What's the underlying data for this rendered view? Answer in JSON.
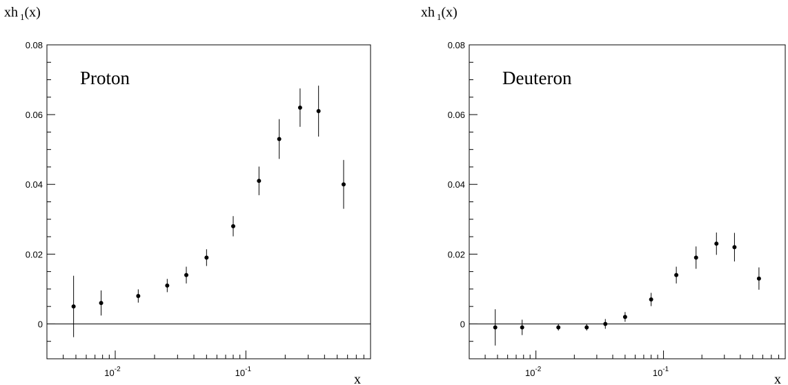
{
  "chart_data": [
    {
      "type": "scatter",
      "title": "Proton",
      "xlabel": "x",
      "ylabel": "xh",
      "ylabel_sub": "1",
      "ylabel_tail": "(x)",
      "x_scale": "log",
      "xlim": [
        0.003,
        0.9
      ],
      "ylim": [
        -0.01,
        0.08
      ],
      "yticks": [
        0,
        0.02,
        0.04,
        0.06,
        0.08
      ],
      "ytick_labels": [
        "0",
        "0.02",
        "0.04",
        "0.06",
        "0.08"
      ],
      "xticks_major": [
        0.01,
        0.1
      ],
      "xtick_labels": [
        {
          "base": "10",
          "exp": "-2"
        },
        {
          "base": "10",
          "exp": "-1"
        }
      ],
      "zero_line": true,
      "grid": false,
      "points": [
        {
          "x": 0.0048,
          "y": 0.005,
          "err": 0.0088
        },
        {
          "x": 0.0078,
          "y": 0.006,
          "err": 0.0036
        },
        {
          "x": 0.015,
          "y": 0.008,
          "err": 0.0019
        },
        {
          "x": 0.025,
          "y": 0.011,
          "err": 0.0019
        },
        {
          "x": 0.035,
          "y": 0.014,
          "err": 0.0024
        },
        {
          "x": 0.05,
          "y": 0.019,
          "err": 0.0024
        },
        {
          "x": 0.08,
          "y": 0.028,
          "err": 0.0029
        },
        {
          "x": 0.126,
          "y": 0.041,
          "err": 0.0041
        },
        {
          "x": 0.18,
          "y": 0.053,
          "err": 0.0057
        },
        {
          "x": 0.26,
          "y": 0.062,
          "err": 0.0055
        },
        {
          "x": 0.36,
          "y": 0.061,
          "err": 0.0073
        },
        {
          "x": 0.56,
          "y": 0.04,
          "err": 0.007
        }
      ]
    },
    {
      "type": "scatter",
      "title": "Deuteron",
      "xlabel": "x",
      "ylabel": "xh",
      "ylabel_sub": "1",
      "ylabel_tail": "(x)",
      "x_scale": "log",
      "xlim": [
        0.003,
        0.9
      ],
      "ylim": [
        -0.01,
        0.08
      ],
      "yticks": [
        0,
        0.02,
        0.04,
        0.06,
        0.08
      ],
      "ytick_labels": [
        "0",
        "0.02",
        "0.04",
        "0.06",
        "0.08"
      ],
      "xticks_major": [
        0.01,
        0.1
      ],
      "xtick_labels": [
        {
          "base": "10",
          "exp": "-2"
        },
        {
          "base": "10",
          "exp": "-1"
        }
      ],
      "zero_line": true,
      "grid": false,
      "points": [
        {
          "x": 0.0048,
          "y": -0.001,
          "err": 0.0052
        },
        {
          "x": 0.0078,
          "y": -0.001,
          "err": 0.0022
        },
        {
          "x": 0.015,
          "y": -0.001,
          "err": 0.0009
        },
        {
          "x": 0.025,
          "y": -0.001,
          "err": 0.0009
        },
        {
          "x": 0.035,
          "y": 0.0,
          "err": 0.0014
        },
        {
          "x": 0.05,
          "y": 0.002,
          "err": 0.0014
        },
        {
          "x": 0.08,
          "y": 0.007,
          "err": 0.0019
        },
        {
          "x": 0.126,
          "y": 0.014,
          "err": 0.0024
        },
        {
          "x": 0.18,
          "y": 0.019,
          "err": 0.0032
        },
        {
          "x": 0.26,
          "y": 0.023,
          "err": 0.0032
        },
        {
          "x": 0.36,
          "y": 0.022,
          "err": 0.0041
        },
        {
          "x": 0.56,
          "y": 0.013,
          "err": 0.0032
        }
      ]
    }
  ]
}
